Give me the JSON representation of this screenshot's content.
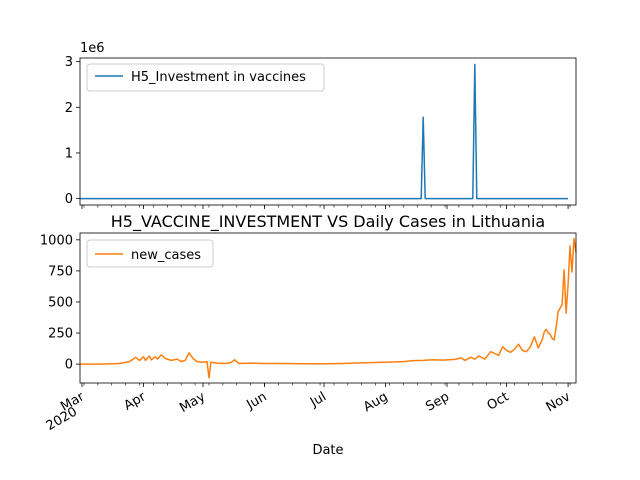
{
  "chart_data": [
    {
      "type": "line",
      "scale_label": "1e6",
      "legend_position": "upper-left",
      "ylim": [
        -140000,
        3080000
      ],
      "yticks": [
        0,
        1,
        2,
        3
      ],
      "ytick_values": [
        0,
        1000000,
        2000000,
        3000000
      ],
      "series": [
        {
          "name": "H5_Investment in vaccines",
          "color": "#1f77b4",
          "points": [
            [
              "2020-02-29",
              0
            ],
            [
              "2020-08-19",
              0
            ],
            [
              "2020-08-20",
              1780000
            ],
            [
              "2020-08-21",
              0
            ],
            [
              "2020-09-14",
              0
            ],
            [
              "2020-09-15",
              2940000
            ],
            [
              "2020-09-16",
              0
            ],
            [
              "2020-11-01",
              0
            ]
          ]
        }
      ]
    },
    {
      "type": "line",
      "title": "H5_VACCINE_INVESTMENT VS Daily Cases in Lithuania",
      "xlabel": "Date",
      "legend_position": "upper-left",
      "ylim": [
        -152,
        1055
      ],
      "yticks": [
        0,
        250,
        500,
        750,
        1000
      ],
      "xticks": [
        {
          "date": "2020-03-01",
          "label": "Mar",
          "sublabel": "2020"
        },
        {
          "date": "2020-04-01",
          "label": "Apr"
        },
        {
          "date": "2020-05-01",
          "label": "May"
        },
        {
          "date": "2020-06-01",
          "label": "Jun"
        },
        {
          "date": "2020-07-01",
          "label": "Jul"
        },
        {
          "date": "2020-08-01",
          "label": "Aug"
        },
        {
          "date": "2020-09-01",
          "label": "Sep"
        },
        {
          "date": "2020-10-01",
          "label": "Oct"
        },
        {
          "date": "2020-11-01",
          "label": "Nov"
        }
      ],
      "series": [
        {
          "name": "new_cases",
          "color": "#ff7f0e",
          "points": [
            [
              "2020-02-29",
              0
            ],
            [
              "2020-03-10",
              0
            ],
            [
              "2020-03-20",
              5
            ],
            [
              "2020-03-25",
              20
            ],
            [
              "2020-03-28",
              55
            ],
            [
              "2020-03-30",
              30
            ],
            [
              "2020-04-01",
              60
            ],
            [
              "2020-04-02",
              30
            ],
            [
              "2020-04-04",
              65
            ],
            [
              "2020-04-05",
              35
            ],
            [
              "2020-04-07",
              60
            ],
            [
              "2020-04-08",
              40
            ],
            [
              "2020-04-10",
              75
            ],
            [
              "2020-04-12",
              45
            ],
            [
              "2020-04-15",
              30
            ],
            [
              "2020-04-18",
              40
            ],
            [
              "2020-04-20",
              20
            ],
            [
              "2020-04-22",
              30
            ],
            [
              "2020-04-24",
              90
            ],
            [
              "2020-04-26",
              45
            ],
            [
              "2020-04-28",
              20
            ],
            [
              "2020-05-01",
              15
            ],
            [
              "2020-05-03",
              20
            ],
            [
              "2020-05-04",
              -110
            ],
            [
              "2020-05-05",
              15
            ],
            [
              "2020-05-08",
              8
            ],
            [
              "2020-05-12",
              5
            ],
            [
              "2020-05-15",
              12
            ],
            [
              "2020-05-17",
              35
            ],
            [
              "2020-05-19",
              5
            ],
            [
              "2020-05-25",
              8
            ],
            [
              "2020-06-01",
              5
            ],
            [
              "2020-06-10",
              5
            ],
            [
              "2020-06-20",
              3
            ],
            [
              "2020-07-01",
              2
            ],
            [
              "2020-07-10",
              5
            ],
            [
              "2020-07-20",
              10
            ],
            [
              "2020-08-01",
              15
            ],
            [
              "2020-08-10",
              20
            ],
            [
              "2020-08-15",
              28
            ],
            [
              "2020-08-20",
              30
            ],
            [
              "2020-08-25",
              35
            ],
            [
              "2020-08-30",
              32
            ],
            [
              "2020-09-05",
              38
            ],
            [
              "2020-09-08",
              50
            ],
            [
              "2020-09-10",
              30
            ],
            [
              "2020-09-13",
              55
            ],
            [
              "2020-09-15",
              40
            ],
            [
              "2020-09-17",
              65
            ],
            [
              "2020-09-20",
              40
            ],
            [
              "2020-09-23",
              100
            ],
            [
              "2020-09-25",
              85
            ],
            [
              "2020-09-27",
              70
            ],
            [
              "2020-09-29",
              140
            ],
            [
              "2020-10-01",
              110
            ],
            [
              "2020-10-03",
              95
            ],
            [
              "2020-10-05",
              120
            ],
            [
              "2020-10-07",
              160
            ],
            [
              "2020-10-09",
              110
            ],
            [
              "2020-10-11",
              100
            ],
            [
              "2020-10-13",
              140
            ],
            [
              "2020-10-15",
              220
            ],
            [
              "2020-10-17",
              130
            ],
            [
              "2020-10-19",
              200
            ],
            [
              "2020-10-20",
              260
            ],
            [
              "2020-10-21",
              280
            ],
            [
              "2020-10-22",
              250
            ],
            [
              "2020-10-23",
              240
            ],
            [
              "2020-10-24",
              205
            ],
            [
              "2020-10-25",
              195
            ],
            [
              "2020-10-26",
              300
            ],
            [
              "2020-10-27",
              420
            ],
            [
              "2020-10-28",
              450
            ],
            [
              "2020-10-29",
              480
            ],
            [
              "2020-10-30",
              760
            ],
            [
              "2020-10-31",
              410
            ],
            [
              "2020-11-01",
              640
            ],
            [
              "2020-11-02",
              950
            ],
            [
              "2020-11-03",
              740
            ],
            [
              "2020-11-04",
              1010
            ],
            [
              "2020-11-05",
              900
            ]
          ]
        }
      ]
    }
  ]
}
